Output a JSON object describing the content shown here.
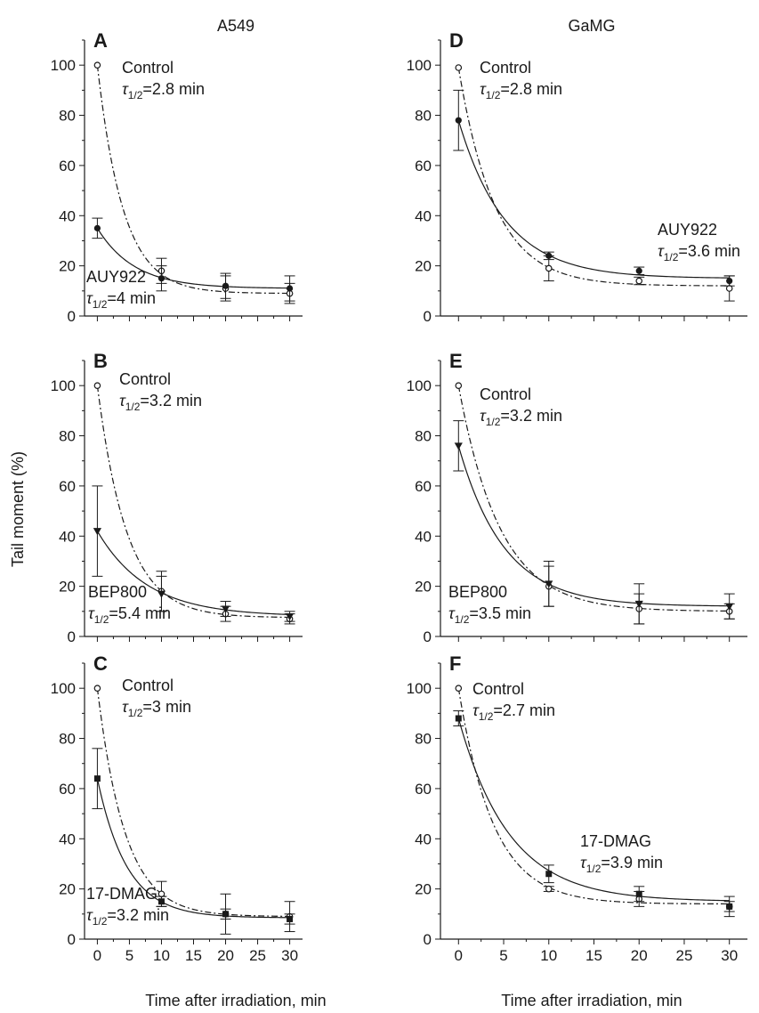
{
  "figure": {
    "column_titles": [
      "A549",
      "GaMG"
    ],
    "ylabel": "Tail moment (%)",
    "xlabel": "Time after irradiation, min"
  },
  "chart_data": [
    {
      "panel": "A",
      "type": "line",
      "column": "A549",
      "x": [
        0,
        10,
        20,
        30
      ],
      "xlim": [
        -2,
        32
      ],
      "ylim": [
        0,
        110
      ],
      "xticks": [
        0,
        5,
        10,
        15,
        20,
        25,
        30
      ],
      "yticks": [
        0,
        20,
        40,
        60,
        80,
        100
      ],
      "series": [
        {
          "name": "Control",
          "label": "Control",
          "tau_label": "=2.8 min",
          "tau": 2.8,
          "plateau": 9,
          "marker": "open-circle",
          "line": "dashdot",
          "values": [
            100,
            18,
            11,
            9
          ],
          "errors": [
            0,
            5,
            5,
            4
          ]
        },
        {
          "name": "AUY922",
          "label": "AUY922",
          "tau_label": "=4 min",
          "tau": 4,
          "plateau": 11,
          "marker": "filled-circle",
          "line": "solid",
          "values": [
            35,
            15,
            12,
            11
          ],
          "errors": [
            4,
            5,
            5,
            5
          ]
        }
      ]
    },
    {
      "panel": "B",
      "type": "line",
      "column": "A549",
      "x": [
        0,
        10,
        20,
        30
      ],
      "xlim": [
        -2,
        32
      ],
      "ylim": [
        0,
        110
      ],
      "xticks": [
        0,
        5,
        10,
        15,
        20,
        25,
        30
      ],
      "yticks": [
        0,
        20,
        40,
        60,
        80,
        100
      ],
      "series": [
        {
          "name": "Control",
          "label": "Control",
          "tau_label": "=3.2 min",
          "tau": 3.2,
          "plateau": 7.5,
          "marker": "open-circle",
          "line": "dashdot",
          "values": [
            100,
            18,
            9,
            7
          ],
          "errors": [
            0,
            8,
            3,
            2
          ]
        },
        {
          "name": "BEP800",
          "label": "BEP800",
          "tau_label": "=5.4 min",
          "tau": 5.4,
          "plateau": 8,
          "marker": "filled-triangle",
          "line": "solid",
          "values": [
            42,
            17,
            11,
            8
          ],
          "errors": [
            18,
            7,
            3,
            2
          ]
        }
      ]
    },
    {
      "panel": "C",
      "type": "line",
      "column": "A549",
      "x": [
        0,
        10,
        20,
        30
      ],
      "xlim": [
        -2,
        32
      ],
      "ylim": [
        0,
        110
      ],
      "xticks": [
        0,
        5,
        10,
        15,
        20,
        25,
        30
      ],
      "yticks": [
        0,
        20,
        40,
        60,
        80,
        100
      ],
      "series": [
        {
          "name": "Control",
          "label": "Control",
          "tau_label": "=3 min",
          "tau": 3,
          "plateau": 9,
          "marker": "open-circle",
          "line": "dashdot",
          "values": [
            100,
            18,
            10,
            9
          ],
          "errors": [
            0,
            5,
            8,
            6
          ]
        },
        {
          "name": "17-DMAG",
          "label": "17-DMAG",
          "tau_label": "=3.2 min",
          "tau": 3.2,
          "plateau": 8.5,
          "marker": "filled-square",
          "line": "solid",
          "values": [
            64,
            15,
            10,
            8
          ],
          "errors": [
            12,
            2,
            2,
            2
          ]
        }
      ]
    },
    {
      "panel": "D",
      "type": "line",
      "column": "GaMG",
      "x": [
        0,
        10,
        20,
        30
      ],
      "xlim": [
        -2,
        32
      ],
      "ylim": [
        0,
        110
      ],
      "xticks": [
        0,
        5,
        10,
        15,
        20,
        25,
        30
      ],
      "yticks": [
        0,
        20,
        40,
        60,
        80,
        100
      ],
      "series": [
        {
          "name": "Control",
          "label": "Control",
          "tau_label": "=2.8 min",
          "tau": 2.8,
          "plateau": 12,
          "marker": "open-circle",
          "line": "dashdot",
          "values": [
            99,
            19,
            14,
            11
          ],
          "errors": [
            0,
            5,
            1.5,
            5
          ]
        },
        {
          "name": "AUY922",
          "label": "AUY922",
          "tau_label": "=3.6 min",
          "tau": 3.6,
          "plateau": 15,
          "marker": "filled-circle",
          "line": "solid",
          "values": [
            78,
            24,
            18,
            14
          ],
          "errors": [
            12,
            1.5,
            1.5,
            2
          ]
        }
      ]
    },
    {
      "panel": "E",
      "type": "line",
      "column": "GaMG",
      "x": [
        0,
        10,
        20,
        30
      ],
      "xlim": [
        -2,
        32
      ],
      "ylim": [
        0,
        110
      ],
      "xticks": [
        0,
        5,
        10,
        15,
        20,
        25,
        30
      ],
      "yticks": [
        0,
        20,
        40,
        60,
        80,
        100
      ],
      "series": [
        {
          "name": "Control",
          "label": "Control",
          "tau_label": "=3.2 min",
          "tau": 3.2,
          "plateau": 10,
          "marker": "open-circle",
          "line": "dashdot",
          "values": [
            100,
            20,
            11,
            10
          ],
          "errors": [
            0,
            8,
            6,
            3
          ]
        },
        {
          "name": "BEP800",
          "label": "BEP800",
          "tau_label": "=3.5 min",
          "tau": 3.5,
          "plateau": 12,
          "marker": "filled-triangle",
          "line": "solid",
          "values": [
            76,
            21,
            13,
            12
          ],
          "errors": [
            10,
            9,
            8,
            5
          ]
        }
      ]
    },
    {
      "panel": "F",
      "type": "line",
      "column": "GaMG",
      "x": [
        0,
        10,
        20,
        30
      ],
      "xlim": [
        -2,
        32
      ],
      "ylim": [
        0,
        110
      ],
      "xticks": [
        0,
        5,
        10,
        15,
        20,
        25,
        30
      ],
      "yticks": [
        0,
        20,
        40,
        60,
        80,
        100
      ],
      "series": [
        {
          "name": "Control",
          "label": "Control",
          "tau_label": "=2.7 min",
          "tau": 2.7,
          "plateau": 14,
          "marker": "open-circle",
          "line": "dashdot",
          "values": [
            100,
            20,
            16,
            13
          ],
          "errors": [
            0,
            1,
            3,
            2
          ]
        },
        {
          "name": "17-DMAG",
          "label": "17-DMAG",
          "tau_label": "=3.9 min",
          "tau": 3.9,
          "plateau": 15,
          "marker": "filled-square",
          "line": "solid",
          "values": [
            88,
            26,
            18,
            13
          ],
          "errors": [
            3,
            3.5,
            3,
            4
          ]
        }
      ]
    }
  ]
}
